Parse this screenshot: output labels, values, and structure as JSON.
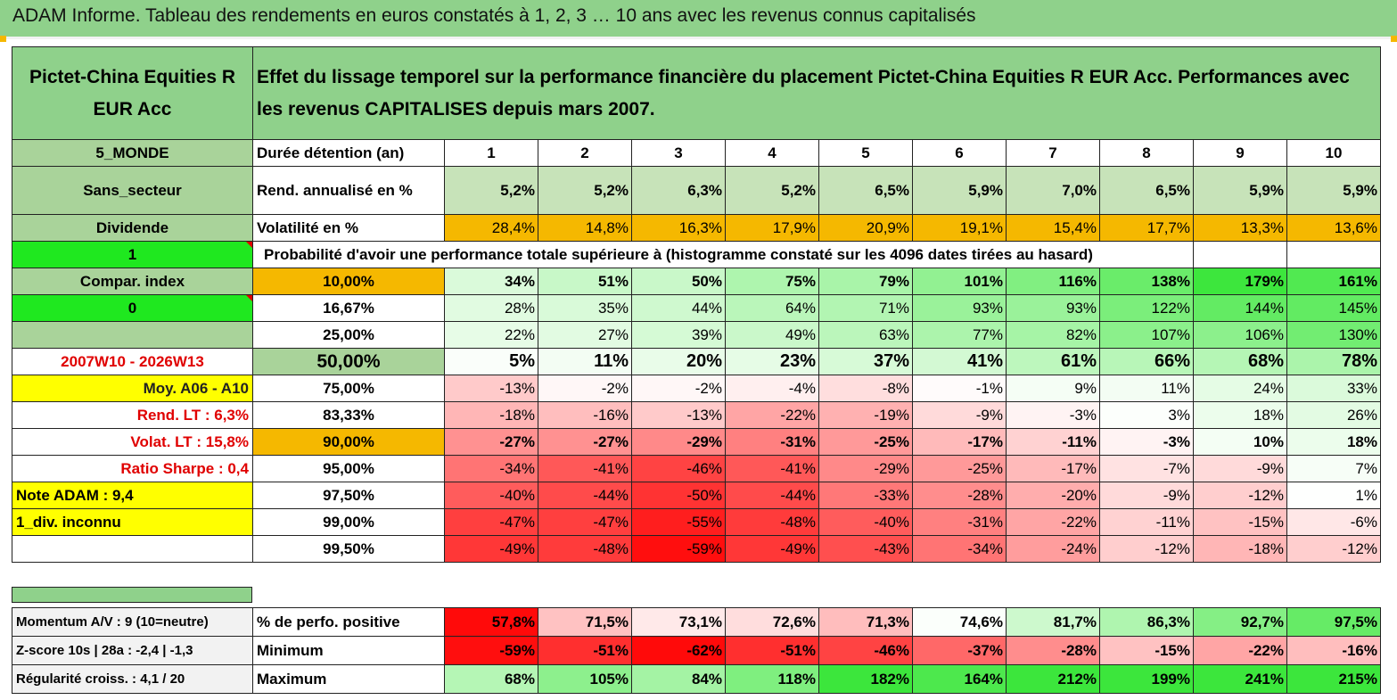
{
  "title": "ADAM Informe. Tableau des rendements en euros constatés à 1, 2, 3 … 10 ans avec les revenus connus capitalisés",
  "fund_name": "Pictet-China Equities R EUR Acc",
  "description": "Effet du lissage temporel sur la performance financière du placement Pictet-China Equities R EUR Acc. Performances avec les revenus CAPITALISES depuis mars 2007.",
  "left_labels": {
    "zone": "5_MONDE",
    "secteur": "Sans_secteur",
    "dividende": "Dividende",
    "flag1": "1",
    "compar": "Compar. index",
    "flag0": "0",
    "period": "2007W10 - 2026W13",
    "moy": "Moy. A06 - A10",
    "rend_lt": "Rend. LT :   6,3%",
    "volat_lt": "Volat. LT :   15,8%",
    "sharpe": "Ratio Sharpe :    0,4",
    "note": "Note ADAM : 9,4",
    "div": "1_div. inconnu"
  },
  "row_labels": {
    "duree": "Durée détention (an)",
    "rend": "Rend. annualisé en %",
    "vol": "Volatilité en %",
    "proba": "Probabilité d'avoir une performance totale supérieure à (histogramme constaté sur les 4096 dates tirées au hasard)"
  },
  "years": [
    "1",
    "2",
    "3",
    "4",
    "5",
    "6",
    "7",
    "8",
    "9",
    "10"
  ],
  "rend": [
    "5,2%",
    "5,2%",
    "6,3%",
    "5,2%",
    "6,5%",
    "5,9%",
    "7,0%",
    "6,5%",
    "5,9%",
    "5,9%"
  ],
  "vol": [
    "28,4%",
    "14,8%",
    "16,3%",
    "17,9%",
    "20,9%",
    "19,1%",
    "15,4%",
    "17,7%",
    "13,3%",
    "13,6%"
  ],
  "prob_rows": [
    {
      "p": "10,00%",
      "v": [
        "34%",
        "51%",
        "50%",
        "75%",
        "79%",
        "101%",
        "116%",
        "138%",
        "179%",
        "161%"
      ]
    },
    {
      "p": "16,67%",
      "v": [
        "28%",
        "35%",
        "44%",
        "64%",
        "71%",
        "93%",
        "93%",
        "122%",
        "144%",
        "145%"
      ]
    },
    {
      "p": "25,00%",
      "v": [
        "22%",
        "27%",
        "39%",
        "49%",
        "63%",
        "77%",
        "82%",
        "107%",
        "106%",
        "130%"
      ]
    },
    {
      "p": "50,00%",
      "v": [
        "5%",
        "11%",
        "20%",
        "23%",
        "37%",
        "41%",
        "61%",
        "66%",
        "68%",
        "78%"
      ]
    },
    {
      "p": "75,00%",
      "v": [
        "-13%",
        "-2%",
        "-2%",
        "-4%",
        "-8%",
        "-1%",
        "9%",
        "11%",
        "24%",
        "33%"
      ]
    },
    {
      "p": "83,33%",
      "v": [
        "-18%",
        "-16%",
        "-13%",
        "-22%",
        "-19%",
        "-9%",
        "-3%",
        "3%",
        "18%",
        "26%"
      ]
    },
    {
      "p": "90,00%",
      "v": [
        "-27%",
        "-27%",
        "-29%",
        "-31%",
        "-25%",
        "-17%",
        "-11%",
        "-3%",
        "10%",
        "18%"
      ]
    },
    {
      "p": "95,00%",
      "v": [
        "-34%",
        "-41%",
        "-46%",
        "-41%",
        "-29%",
        "-25%",
        "-17%",
        "-7%",
        "-9%",
        "7%"
      ]
    },
    {
      "p": "97,50%",
      "v": [
        "-40%",
        "-44%",
        "-50%",
        "-44%",
        "-33%",
        "-28%",
        "-20%",
        "-9%",
        "-12%",
        "1%"
      ]
    },
    {
      "p": "99,00%",
      "v": [
        "-47%",
        "-47%",
        "-55%",
        "-48%",
        "-40%",
        "-31%",
        "-22%",
        "-11%",
        "-15%",
        "-6%"
      ]
    },
    {
      "p": "99,50%",
      "v": [
        "-49%",
        "-48%",
        "-59%",
        "-49%",
        "-43%",
        "-34%",
        "-24%",
        "-12%",
        "-18%",
        "-12%"
      ]
    }
  ],
  "bottom_rows": [
    {
      "left": "Momentum A/V : 9 (10=neutre)",
      "label": "% de perfo. positive",
      "v": [
        "57,8%",
        "71,5%",
        "73,1%",
        "72,6%",
        "71,3%",
        "74,6%",
        "81,7%",
        "86,3%",
        "92,7%",
        "97,5%"
      ]
    },
    {
      "left": "Z-score 10s | 28a : -2,4 | -1,3",
      "label": "Minimum",
      "v": [
        "-59%",
        "-51%",
        "-62%",
        "-51%",
        "-46%",
        "-37%",
        "-28%",
        "-15%",
        "-22%",
        "-16%"
      ]
    },
    {
      "left": "Régularité croiss. : 4,1 / 20",
      "label": "Maximum",
      "v": [
        "68%",
        "105%",
        "84%",
        "118%",
        "182%",
        "164%",
        "212%",
        "199%",
        "241%",
        "215%"
      ]
    }
  ],
  "colors": {
    "header_green": "#8fd18b",
    "orange": "#f5b800",
    "yellow": "#ffff00",
    "bright_green": "#1fe81f",
    "red_text": "#e00000"
  }
}
